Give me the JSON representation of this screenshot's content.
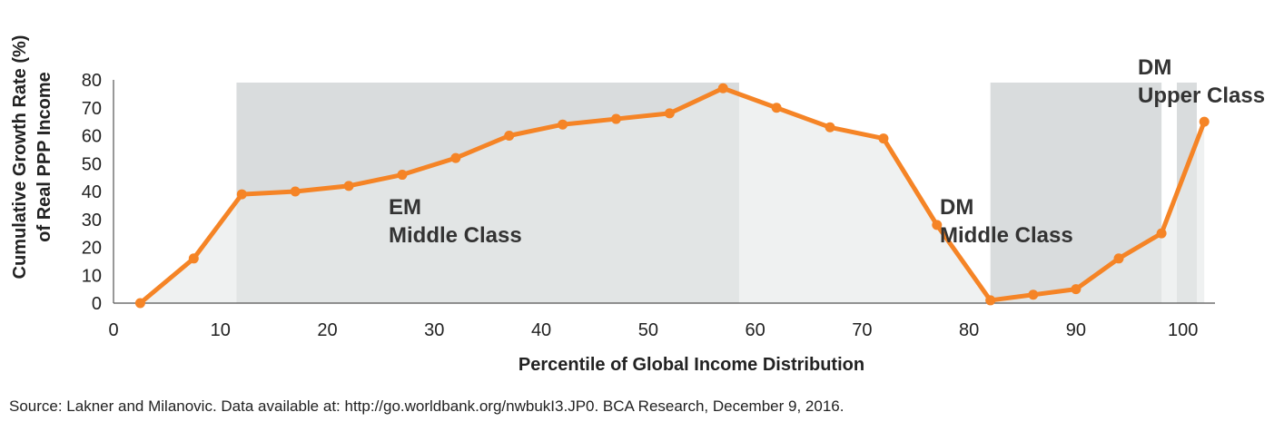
{
  "chart_data": {
    "type": "line",
    "xlabel": "Percentile of Global Income Distribution",
    "ylabel_lines": [
      "Cumulative Growth Rate (%)",
      "of Real PPP Income"
    ],
    "xlim": [
      0,
      103
    ],
    "ylim": [
      0,
      80
    ],
    "x_ticks": [
      0,
      10,
      20,
      30,
      40,
      50,
      60,
      70,
      80,
      90,
      100
    ],
    "y_ticks": [
      0,
      10,
      20,
      30,
      40,
      50,
      60,
      70,
      80
    ],
    "grid": false,
    "series": [
      {
        "x": [
          2.5,
          7.5,
          12,
          17,
          22,
          27,
          32,
          37,
          42,
          47,
          52,
          57,
          62,
          67,
          72,
          77,
          82,
          86,
          90,
          94,
          98,
          102
        ],
        "y": [
          0,
          16,
          39,
          40,
          42,
          46,
          52,
          60,
          64,
          66,
          68,
          77,
          70,
          63,
          59,
          28,
          1,
          3,
          5,
          16,
          25,
          65
        ]
      }
    ],
    "regions": [
      {
        "x0": 11.5,
        "x1": 58.5,
        "label_lines": [
          "EM",
          "Middle Class"
        ]
      },
      {
        "x0": 82,
        "x1": 98,
        "label_lines": [
          "DM",
          "Middle Class"
        ]
      },
      {
        "x0": 106.5,
        "x1": 108.5,
        "label_lines": [
          "DM",
          "Upper Class"
        ]
      }
    ],
    "colors": {
      "line": "#f58426",
      "area": "#e6e9ea",
      "region": "#d9dcdd"
    }
  },
  "footer": {
    "source": "Source: Lakner and Milanovic. Data available at: http://go.worldbank.org/nwbukI3.JP0. BCA Research, December 9, 2016."
  }
}
